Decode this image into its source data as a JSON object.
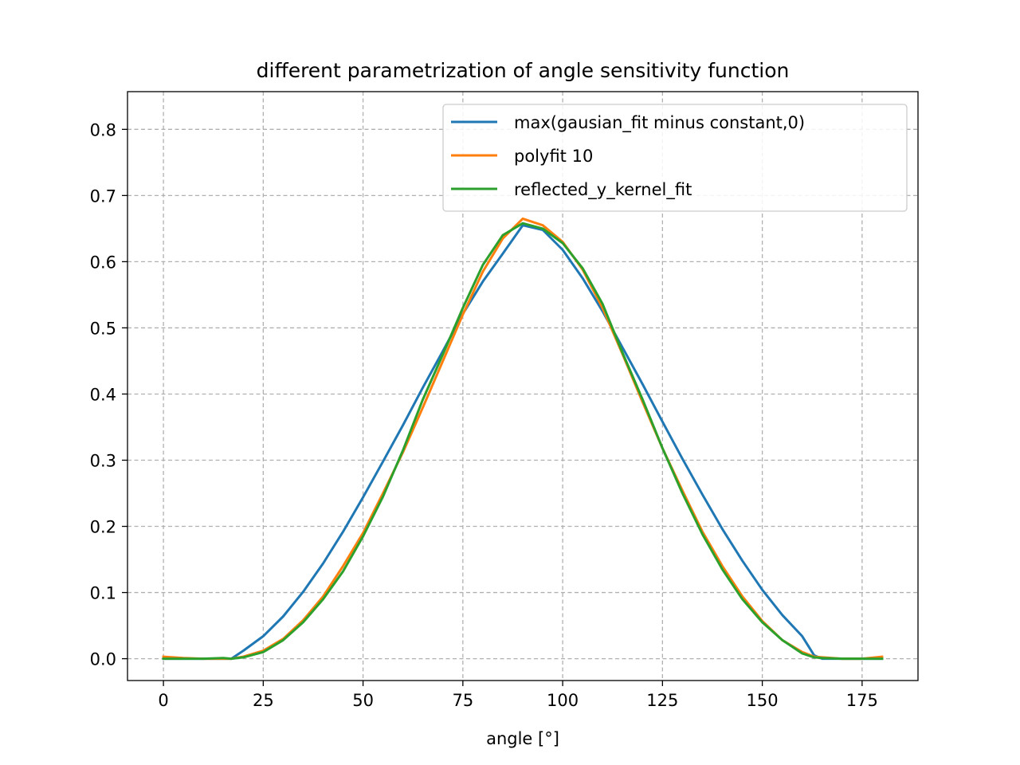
{
  "chart_data": {
    "type": "line",
    "title": "different parametrization of angle sensitivity function",
    "xlabel": "angle [°]",
    "ylabel": "",
    "xlim": [
      -9,
      189
    ],
    "ylim": [
      -0.033,
      0.857
    ],
    "xticks": [
      0,
      25,
      50,
      75,
      100,
      125,
      150,
      175
    ],
    "yticks": [
      0.0,
      0.1,
      0.2,
      0.3,
      0.4,
      0.5,
      0.6,
      0.7,
      0.8
    ],
    "xtick_labels": [
      "0",
      "25",
      "50",
      "75",
      "100",
      "125",
      "150",
      "175"
    ],
    "ytick_labels": [
      "0.0",
      "0.1",
      "0.2",
      "0.3",
      "0.4",
      "0.5",
      "0.6",
      "0.7",
      "0.8"
    ],
    "grid": true,
    "legend_position": "top-right",
    "x": [
      0,
      5,
      10,
      15,
      17,
      20,
      25,
      30,
      35,
      40,
      45,
      50,
      55,
      60,
      65,
      70,
      75,
      80,
      85,
      90,
      95,
      100,
      105,
      110,
      115,
      120,
      125,
      130,
      135,
      140,
      145,
      150,
      155,
      160,
      163,
      165,
      170,
      175,
      180
    ],
    "series": [
      {
        "name": "max(gausian_fit minus constant,0)",
        "color": "#1f77b4",
        "values": [
          0,
          0,
          0,
          0,
          0,
          0.012,
          0.034,
          0.064,
          0.101,
          0.144,
          0.192,
          0.244,
          0.298,
          0.353,
          0.41,
          0.465,
          0.521,
          0.57,
          0.612,
          0.655,
          0.648,
          0.618,
          0.575,
          0.525,
          0.47,
          0.415,
          0.358,
          0.302,
          0.248,
          0.196,
          0.148,
          0.104,
          0.066,
          0.034,
          0.005,
          0,
          0,
          0,
          0
        ]
      },
      {
        "name": "polyfit 10",
        "color": "#ff7f0e",
        "values": [
          0.003,
          0.001,
          0.0,
          0.0,
          0.0,
          0.003,
          0.012,
          0.03,
          0.058,
          0.094,
          0.14,
          0.19,
          0.25,
          0.312,
          0.38,
          0.45,
          0.52,
          0.585,
          0.635,
          0.665,
          0.655,
          0.63,
          0.588,
          0.53,
          0.46,
          0.388,
          0.318,
          0.254,
          0.192,
          0.14,
          0.094,
          0.057,
          0.028,
          0.01,
          0.003,
          0.002,
          0.0,
          0.0,
          0.003
        ]
      },
      {
        "name": "reflected_y_kernel_fit",
        "color": "#2ca02c",
        "values": [
          0.0,
          0.0,
          0.0,
          0.001,
          0.0,
          0.002,
          0.01,
          0.028,
          0.055,
          0.09,
          0.132,
          0.185,
          0.245,
          0.315,
          0.392,
          0.46,
          0.53,
          0.595,
          0.64,
          0.658,
          0.65,
          0.628,
          0.59,
          0.536,
          0.462,
          0.392,
          0.318,
          0.25,
          0.188,
          0.135,
          0.09,
          0.055,
          0.028,
          0.008,
          0.002,
          0.001,
          0.0,
          0.0,
          0.0
        ]
      }
    ]
  }
}
